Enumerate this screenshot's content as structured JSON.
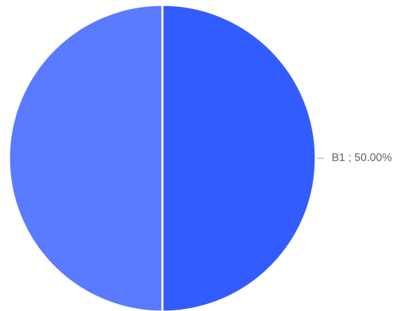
{
  "chart_data": {
    "type": "pie",
    "title": "",
    "legend": "none",
    "slices": [
      {
        "label": "B1 ; 50.00%",
        "name": "B1",
        "value": 50.0,
        "color": "#335cff"
      },
      {
        "label": "",
        "name": "",
        "value": 50.0,
        "color": "#5a7aff"
      }
    ]
  }
}
